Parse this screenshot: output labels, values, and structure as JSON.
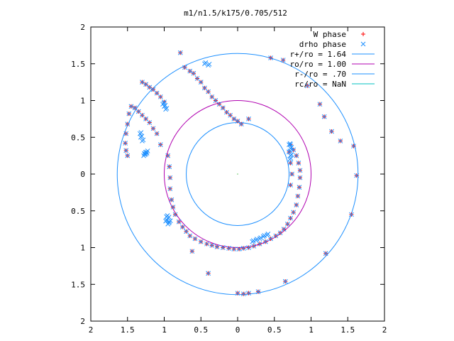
{
  "chart_data": {
    "type": "scatter",
    "title": "m1/n1.5/k175/0.705/512",
    "xlim": [
      -2,
      2
    ],
    "ylim": [
      -2,
      2
    ],
    "grid": false,
    "legend_position": "top-right",
    "x_ticks": [
      -2,
      -1.5,
      -1,
      -0.5,
      0,
      0.5,
      1,
      1.5,
      2
    ],
    "y_ticks": [
      -2,
      -1.5,
      -1,
      -0.5,
      0,
      0.5,
      1,
      1.5,
      2
    ],
    "x_tick_labels": [
      "2",
      "1.5",
      "1",
      "0.5",
      "0",
      "0.5",
      "1",
      "1.5",
      "2"
    ],
    "y_tick_labels": [
      "2",
      "1.5",
      "1",
      "0.5",
      "0",
      "0.5",
      "1",
      "1.5",
      "2"
    ],
    "colors": {
      "w_phase": "#ff0000",
      "drho_phase": "#1e90ff",
      "r_plus": "#1e90ff",
      "ro": "#b000b0",
      "r_minus": "#1e90ff",
      "rc": "#00c0c0"
    },
    "legend": [
      {
        "key": "w_phase",
        "label": "W phase",
        "marker": "plus",
        "color": "#ff0000"
      },
      {
        "key": "drho_phase",
        "label": "drho phase",
        "marker": "cross",
        "color": "#1e90ff"
      },
      {
        "key": "r_plus",
        "label": "r+/ro = 1.64",
        "marker": "line",
        "color": "#1e90ff"
      },
      {
        "key": "ro",
        "label": "ro/ro = 1.00",
        "marker": "line",
        "color": "#b000b0"
      },
      {
        "key": "r_minus",
        "label": "r-/ro = .70",
        "marker": "line",
        "color": "#1e90ff"
      },
      {
        "key": "rc",
        "label": "rc/ro = NaN",
        "marker": "line",
        "color": "#00c0c0"
      }
    ],
    "circles": [
      {
        "name": "r+/ro = 1.64",
        "radius": 1.64,
        "color": "#1e90ff"
      },
      {
        "name": "ro/ro = 1.00",
        "radius": 1.0,
        "color": "#b000b0"
      },
      {
        "name": "r-/ro = .70",
        "radius": 0.7,
        "color": "#1e90ff"
      }
    ],
    "series": [
      {
        "name": "W phase",
        "points": [
          [
            -0.78,
            1.65
          ],
          [
            -0.72,
            1.45
          ],
          [
            -0.65,
            1.4
          ],
          [
            -0.6,
            1.37
          ],
          [
            -0.55,
            1.3
          ],
          [
            -0.5,
            1.25
          ],
          [
            -0.45,
            1.17
          ],
          [
            -0.4,
            1.12
          ],
          [
            -0.35,
            1.05
          ],
          [
            -0.3,
            1.0
          ],
          [
            -0.25,
            0.95
          ],
          [
            -0.2,
            0.9
          ],
          [
            -0.15,
            0.84
          ],
          [
            -0.1,
            0.8
          ],
          [
            -0.05,
            0.75
          ],
          [
            0.0,
            0.72
          ],
          [
            0.05,
            0.68
          ],
          [
            0.15,
            0.75
          ],
          [
            0.45,
            1.58
          ],
          [
            0.62,
            1.55
          ],
          [
            0.95,
            1.2
          ],
          [
            1.12,
            0.95
          ],
          [
            1.18,
            0.78
          ],
          [
            1.28,
            0.58
          ],
          [
            1.4,
            0.45
          ],
          [
            1.58,
            0.38
          ],
          [
            1.62,
            -0.02
          ],
          [
            1.55,
            -0.55
          ],
          [
            1.2,
            -1.08
          ],
          [
            0.65,
            -1.46
          ],
          [
            0.28,
            -1.6
          ],
          [
            0.15,
            -1.62
          ],
          [
            0.08,
            -1.63
          ],
          [
            0.0,
            -1.62
          ],
          [
            -0.4,
            -1.35
          ],
          [
            -0.62,
            -1.05
          ],
          [
            -1.05,
            0.4
          ],
          [
            -1.1,
            0.55
          ],
          [
            -1.15,
            0.62
          ],
          [
            -1.2,
            0.7
          ],
          [
            -1.25,
            0.75
          ],
          [
            -1.3,
            0.8
          ],
          [
            -1.35,
            0.85
          ],
          [
            -1.4,
            0.9
          ],
          [
            -1.45,
            0.92
          ],
          [
            -1.48,
            0.82
          ],
          [
            -1.5,
            0.68
          ],
          [
            -1.52,
            0.55
          ],
          [
            -1.53,
            0.42
          ],
          [
            -1.52,
            0.32
          ],
          [
            -1.5,
            0.25
          ],
          [
            -1.0,
            0.98
          ],
          [
            -1.05,
            1.05
          ],
          [
            -1.1,
            1.1
          ],
          [
            -1.15,
            1.15
          ],
          [
            -1.2,
            1.18
          ],
          [
            -1.25,
            1.22
          ],
          [
            -1.3,
            1.25
          ],
          [
            -0.95,
            0.25
          ],
          [
            -0.93,
            0.1
          ],
          [
            -0.92,
            -0.05
          ],
          [
            -0.92,
            -0.2
          ],
          [
            -0.9,
            -0.35
          ],
          [
            -0.88,
            -0.45
          ],
          [
            -0.85,
            -0.55
          ],
          [
            -0.8,
            -0.65
          ],
          [
            -0.75,
            -0.72
          ],
          [
            -0.7,
            -0.78
          ],
          [
            -0.65,
            -0.84
          ],
          [
            -0.58,
            -0.88
          ],
          [
            -0.5,
            -0.92
          ],
          [
            -0.42,
            -0.95
          ],
          [
            -0.35,
            -0.97
          ],
          [
            -0.28,
            -0.99
          ],
          [
            -0.2,
            -1.0
          ],
          [
            -0.12,
            -1.01
          ],
          [
            -0.05,
            -1.02
          ],
          [
            0.02,
            -1.02
          ],
          [
            0.08,
            -1.01
          ],
          [
            0.15,
            -1.0
          ],
          [
            0.22,
            -0.98
          ],
          [
            0.3,
            -0.95
          ],
          [
            0.38,
            -0.92
          ],
          [
            0.45,
            -0.88
          ],
          [
            0.52,
            -0.84
          ],
          [
            0.58,
            -0.8
          ],
          [
            0.63,
            -0.75
          ],
          [
            0.68,
            -0.68
          ],
          [
            0.72,
            -0.6
          ],
          [
            0.76,
            -0.52
          ],
          [
            0.8,
            -0.42
          ],
          [
            0.82,
            -0.3
          ],
          [
            0.84,
            -0.18
          ],
          [
            0.85,
            -0.05
          ],
          [
            0.85,
            0.05
          ],
          [
            0.83,
            0.15
          ],
          [
            0.8,
            0.25
          ],
          [
            0.76,
            0.33
          ],
          [
            0.72,
            0.4
          ],
          [
            0.7,
            0.3
          ],
          [
            0.72,
            0.15
          ],
          [
            0.74,
            0.0
          ],
          [
            0.72,
            -0.15
          ]
        ]
      },
      {
        "name": "drho phase",
        "points": [
          [
            -0.45,
            1.5
          ],
          [
            -0.4,
            1.48
          ],
          [
            -1.0,
            0.92
          ],
          [
            -0.98,
            0.88
          ],
          [
            -1.02,
            0.95
          ],
          [
            -1.3,
            0.45
          ],
          [
            -1.32,
            0.5
          ],
          [
            -1.33,
            0.55
          ],
          [
            -1.27,
            0.28
          ],
          [
            -1.28,
            0.25
          ],
          [
            -1.25,
            0.27
          ],
          [
            -1.24,
            0.3
          ],
          [
            -0.95,
            -0.6
          ],
          [
            -0.93,
            -0.65
          ],
          [
            -0.97,
            -0.58
          ],
          [
            -0.95,
            -0.68
          ],
          [
            -0.98,
            -0.64
          ],
          [
            0.7,
            0.4
          ],
          [
            0.72,
            0.35
          ],
          [
            0.7,
            0.3
          ],
          [
            0.72,
            0.25
          ],
          [
            0.71,
            0.2
          ],
          [
            0.2,
            -0.92
          ],
          [
            0.25,
            -0.9
          ],
          [
            0.3,
            -0.88
          ],
          [
            0.35,
            -0.85
          ],
          [
            0.4,
            -0.83
          ]
        ]
      }
    ]
  }
}
